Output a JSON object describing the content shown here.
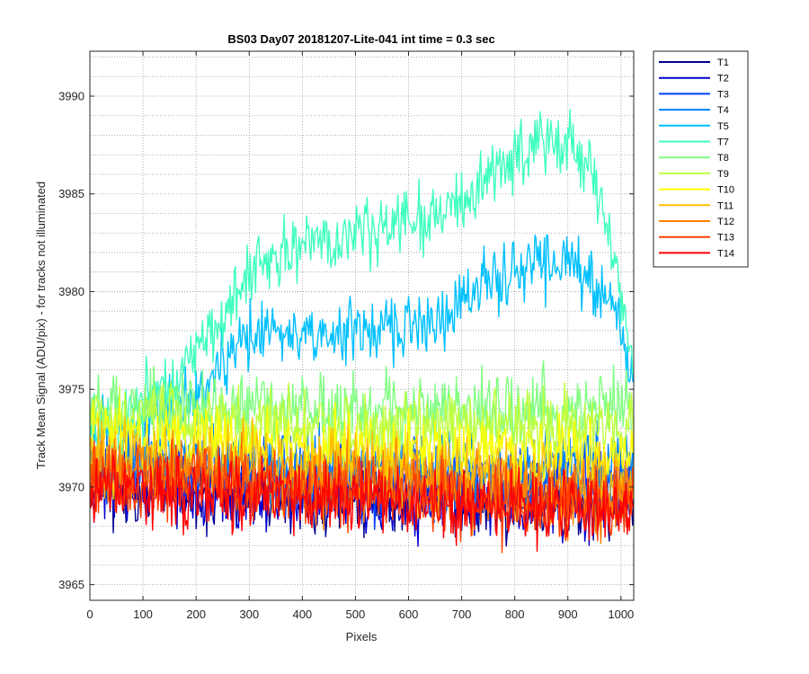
{
  "chart_data": {
    "type": "line",
    "title": "BS03 Day07 20181207-Lite-041 int time = 0.3 sec",
    "xlabel": "Pixels",
    "ylabel": "Track Mean Signal (ADU/pix) - for tracks not illuminated",
    "xlim": [
      0,
      1024
    ],
    "ylim": [
      3964.2,
      3992.3
    ],
    "xticks": [
      0,
      100,
      200,
      300,
      400,
      500,
      600,
      700,
      800,
      900,
      1000
    ],
    "yticks": [
      3965,
      3970,
      3975,
      3980,
      3985,
      3990
    ],
    "grid": "major and minor dotted",
    "legend_position": "outside right, top",
    "series": [
      {
        "name": "T1",
        "color": "#00008f",
        "baseline": [
          [
            0,
            3970
          ],
          [
            200,
            3969.8
          ],
          [
            500,
            3969.5
          ],
          [
            800,
            3969.2
          ],
          [
            1024,
            3969.1
          ]
        ],
        "noise": 1.3
      },
      {
        "name": "T2",
        "color": "#0000d0",
        "baseline": [
          [
            0,
            3970
          ],
          [
            200,
            3969.8
          ],
          [
            500,
            3969.5
          ],
          [
            800,
            3969.2
          ],
          [
            1024,
            3969.1
          ]
        ],
        "noise": 1.3
      },
      {
        "name": "T3",
        "color": "#0040ff",
        "baseline": [
          [
            0,
            3971
          ],
          [
            200,
            3971
          ],
          [
            500,
            3970.5
          ],
          [
            800,
            3970.2
          ],
          [
            1024,
            3970.4
          ]
        ],
        "noise": 1.3
      },
      {
        "name": "T4",
        "color": "#0080ff",
        "baseline": [
          [
            0,
            3971.5
          ],
          [
            200,
            3971.3
          ],
          [
            500,
            3971
          ],
          [
            800,
            3971
          ],
          [
            1024,
            3971.2
          ]
        ],
        "noise": 1.3
      },
      {
        "name": "T5",
        "color": "#00c0ff",
        "baseline": [
          [
            0,
            3973
          ],
          [
            100,
            3973.2
          ],
          [
            200,
            3974.5
          ],
          [
            280,
            3977
          ],
          [
            300,
            3978
          ],
          [
            500,
            3978
          ],
          [
            650,
            3978.5
          ],
          [
            700,
            3979.5
          ],
          [
            750,
            3980.5
          ],
          [
            850,
            3981.5
          ],
          [
            920,
            3981
          ],
          [
            960,
            3980
          ],
          [
            1000,
            3978
          ],
          [
            1024,
            3975
          ]
        ],
        "noise": 1.1
      },
      {
        "name": "T7",
        "color": "#40ffbf",
        "baseline": [
          [
            0,
            3973
          ],
          [
            60,
            3973.3
          ],
          [
            150,
            3975.5
          ],
          [
            250,
            3978.5
          ],
          [
            300,
            3981
          ],
          [
            400,
            3982.5
          ],
          [
            500,
            3983
          ],
          [
            600,
            3983.5
          ],
          [
            700,
            3984.5
          ],
          [
            750,
            3986
          ],
          [
            850,
            3988
          ],
          [
            900,
            3987.5
          ],
          [
            950,
            3986
          ],
          [
            1000,
            3980
          ],
          [
            1024,
            3976
          ]
        ],
        "noise": 1.2
      },
      {
        "name": "T8",
        "color": "#80ff80",
        "baseline": [
          [
            0,
            3974
          ],
          [
            200,
            3974.2
          ],
          [
            500,
            3974
          ],
          [
            800,
            3974.2
          ],
          [
            1024,
            3973.8
          ]
        ],
        "noise": 1.2
      },
      {
        "name": "T9",
        "color": "#bfff40",
        "baseline": [
          [
            0,
            3973.5
          ],
          [
            200,
            3973.5
          ],
          [
            500,
            3973.2
          ],
          [
            800,
            3973.2
          ],
          [
            1024,
            3973
          ]
        ],
        "noise": 1.2
      },
      {
        "name": "T10",
        "color": "#ffff00",
        "baseline": [
          [
            0,
            3972.5
          ],
          [
            200,
            3972.5
          ],
          [
            500,
            3972
          ],
          [
            800,
            3971.7
          ],
          [
            1024,
            3971.5
          ]
        ],
        "noise": 1.2
      },
      {
        "name": "T11",
        "color": "#ffbf00",
        "baseline": [
          [
            0,
            3971.5
          ],
          [
            200,
            3971.3
          ],
          [
            500,
            3971
          ],
          [
            800,
            3970.5
          ],
          [
            1024,
            3970.3
          ]
        ],
        "noise": 1.3
      },
      {
        "name": "T12",
        "color": "#ff8000",
        "baseline": [
          [
            0,
            3970.8
          ],
          [
            200,
            3970.6
          ],
          [
            500,
            3970.2
          ],
          [
            800,
            3969.7
          ],
          [
            1024,
            3969.5
          ]
        ],
        "noise": 1.3
      },
      {
        "name": "T13",
        "color": "#ff4000",
        "baseline": [
          [
            0,
            3970.3
          ],
          [
            200,
            3970.1
          ],
          [
            500,
            3969.7
          ],
          [
            800,
            3969.2
          ],
          [
            1024,
            3969
          ]
        ],
        "noise": 1.3
      },
      {
        "name": "T14",
        "color": "#ff0000",
        "baseline": [
          [
            0,
            3970
          ],
          [
            200,
            3969.9
          ],
          [
            500,
            3969.5
          ],
          [
            800,
            3969
          ],
          [
            1024,
            3968.8
          ]
        ],
        "noise": 1.3
      }
    ]
  }
}
